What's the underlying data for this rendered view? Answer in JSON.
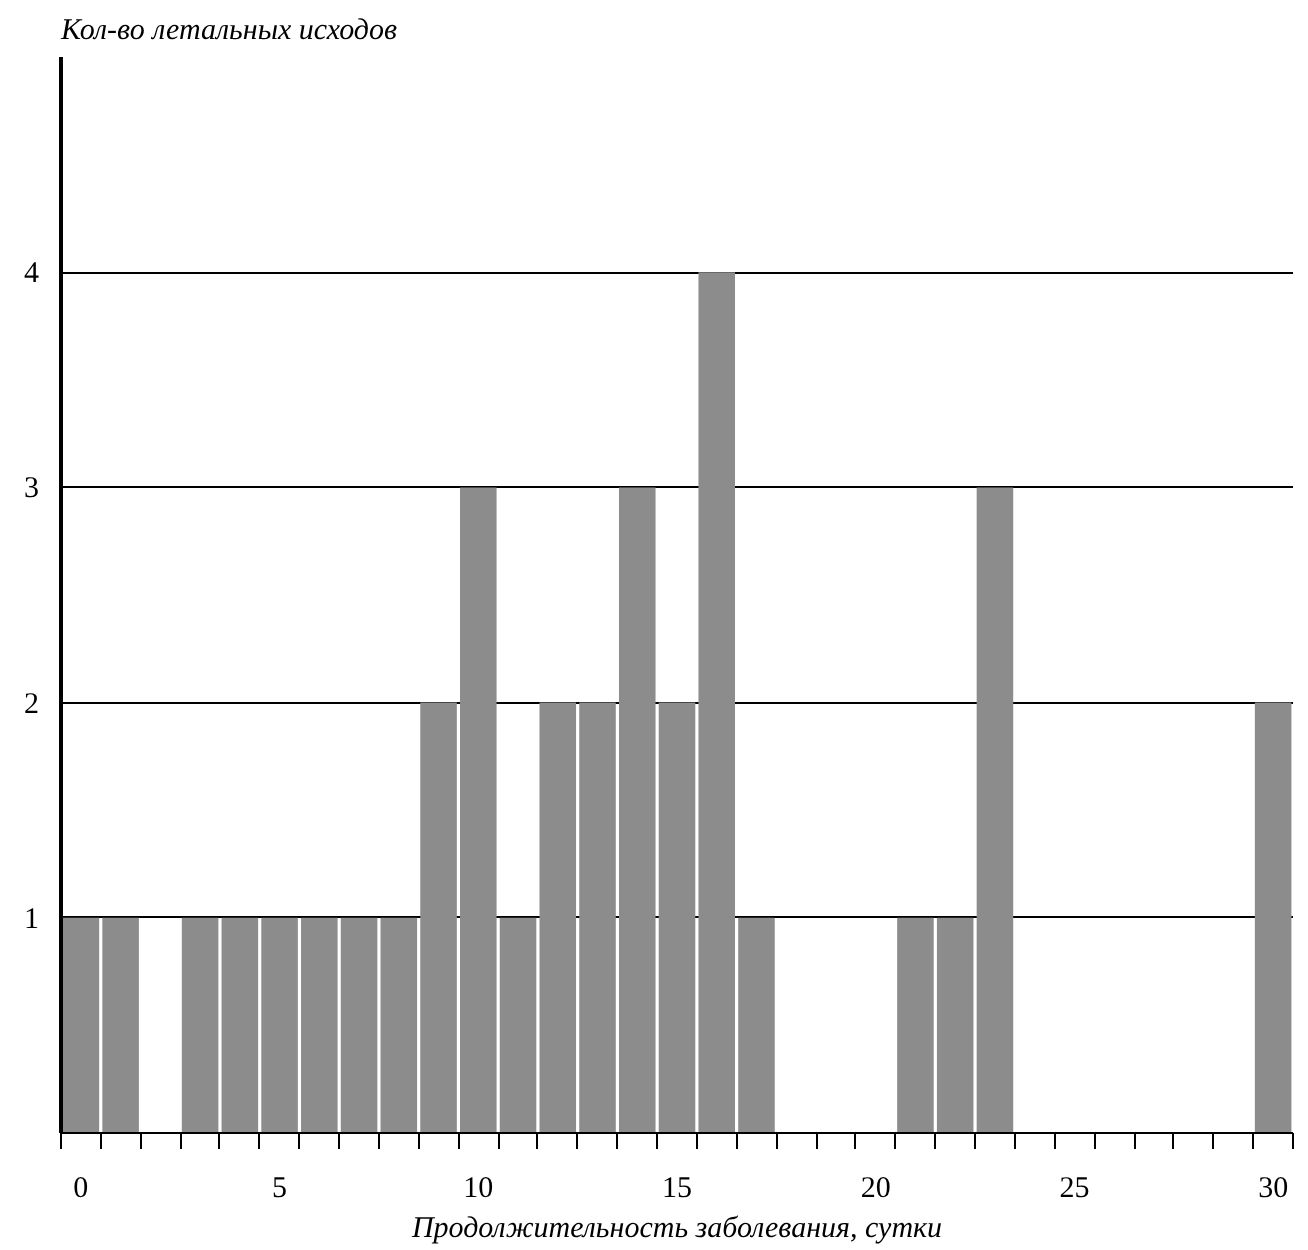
{
  "chart_data": {
    "type": "bar",
    "ylabel": "Кол-во летальных исходов",
    "xlabel": "Продолжительность заболевания, сутки",
    "categories": [
      "0",
      null,
      null,
      null,
      null,
      "5",
      null,
      null,
      null,
      null,
      "10",
      null,
      null,
      null,
      null,
      "15",
      null,
      null,
      null,
      null,
      "20",
      null,
      null,
      null,
      null,
      "25",
      null,
      null,
      null,
      null,
      "30"
    ],
    "values": [
      1,
      1,
      0,
      1,
      1,
      1,
      1,
      1,
      1,
      2,
      3,
      1,
      2,
      2,
      3,
      2,
      4,
      1,
      0,
      0,
      0,
      1,
      1,
      3,
      0,
      0,
      0,
      0,
      0,
      0,
      2
    ],
    "color": "#8c8c8c",
    "ylim": [
      0,
      5
    ],
    "yticks": [
      1,
      2,
      3,
      4
    ],
    "grid": "y"
  }
}
